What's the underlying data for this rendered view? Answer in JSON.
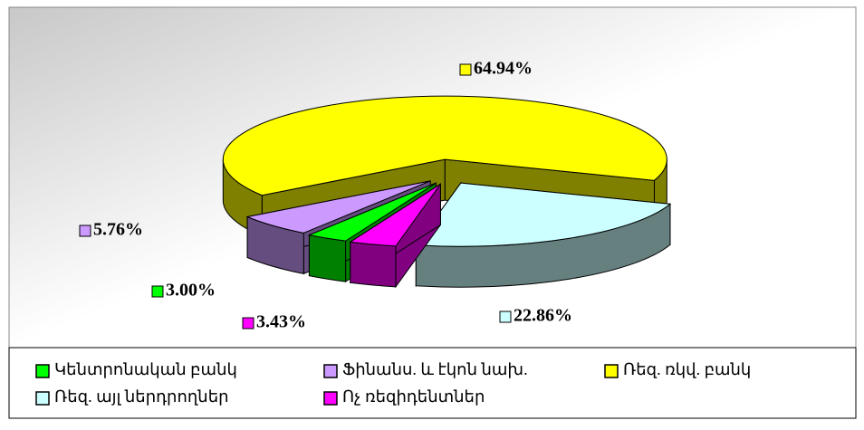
{
  "chart_data": {
    "type": "pie",
    "categories": [
      "Կենտրոնական բանկ",
      "Ֆինանս. և էկոն նախ.",
      "Ռեզ. ռկվ. բանկ",
      "Ռեզ. այլ ներդրողներ",
      "Ոչ ռեզիդենտներ"
    ],
    "values": [
      3.0,
      5.76,
      64.94,
      22.86,
      3.43
    ],
    "value_labels": [
      "3.00%",
      "5.76%",
      "64.94%",
      "22.86%",
      "3.43%"
    ],
    "colors": [
      "#00ff00",
      "#cc99ff",
      "#ffff00",
      "#ccffff",
      "#ff00ff"
    ],
    "legend": "bottom"
  }
}
